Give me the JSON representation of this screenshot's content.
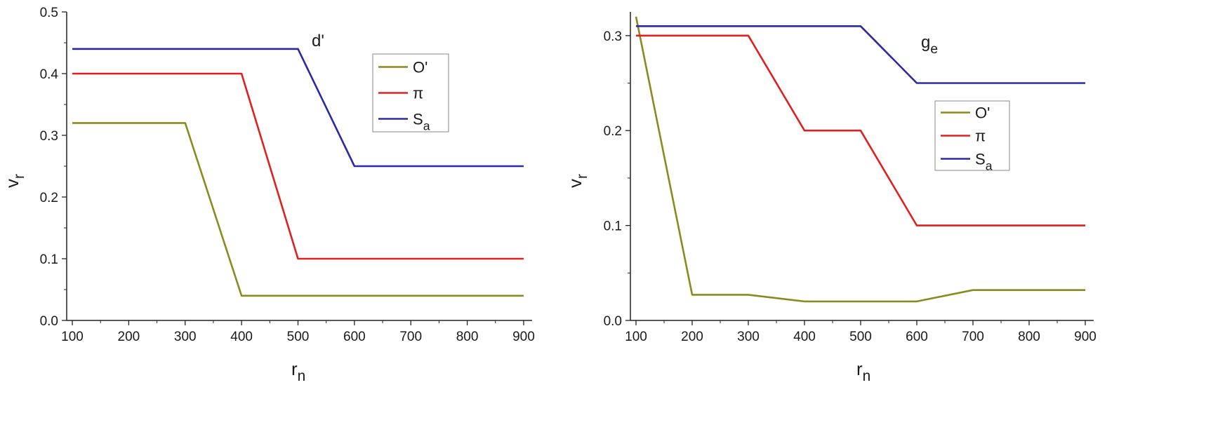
{
  "chart_data": [
    {
      "type": "line",
      "annotation": "d'",
      "xlabel": "r",
      "xlabel_sub": "n",
      "ylabel": "v",
      "ylabel_sub": "r",
      "xlim": [
        90,
        915
      ],
      "ylim": [
        0,
        0.5
      ],
      "xticks": [
        100,
        200,
        300,
        400,
        500,
        600,
        700,
        800,
        900
      ],
      "yticks": [
        0.0,
        0.1,
        0.2,
        0.3,
        0.4,
        0.5
      ],
      "ytick_labels": [
        "0.0",
        "0.1",
        "0.2",
        "0.3",
        "0.4",
        "0.5"
      ],
      "legend_position": "upper-right",
      "series": [
        {
          "name": "O'",
          "name_sub": "",
          "color": "#8a8a1e",
          "x": [
            100,
            300,
            400,
            900
          ],
          "values": [
            0.32,
            0.32,
            0.04,
            0.04
          ]
        },
        {
          "name": "π",
          "name_sub": "",
          "color": "#e02020",
          "x": [
            100,
            400,
            500,
            900
          ],
          "values": [
            0.4,
            0.4,
            0.1,
            0.1
          ]
        },
        {
          "name": "S",
          "name_sub": "a",
          "color": "#2a2aa8",
          "x": [
            100,
            500,
            600,
            900
          ],
          "values": [
            0.44,
            0.44,
            0.25,
            0.25
          ]
        }
      ]
    },
    {
      "type": "line",
      "annotation": "g",
      "annotation_sub": "e",
      "xlabel": "r",
      "xlabel_sub": "n",
      "ylabel": "v",
      "ylabel_sub": "r",
      "xlim": [
        90,
        915
      ],
      "ylim": [
        0,
        0.325
      ],
      "xticks": [
        100,
        200,
        300,
        400,
        500,
        600,
        700,
        800,
        900
      ],
      "yticks": [
        0.0,
        0.1,
        0.2,
        0.3
      ],
      "ytick_labels": [
        "0.0",
        "0.1",
        "0.2",
        "0.3"
      ],
      "legend_position": "right",
      "series": [
        {
          "name": "O'",
          "name_sub": "",
          "color": "#8a8a1e",
          "x": [
            100,
            200,
            300,
            400,
            500,
            600,
            700,
            900
          ],
          "values": [
            0.32,
            0.027,
            0.027,
            0.02,
            0.02,
            0.02,
            0.032,
            0.032
          ]
        },
        {
          "name": "π",
          "name_sub": "",
          "color": "#e02020",
          "x": [
            100,
            300,
            400,
            500,
            600,
            900
          ],
          "values": [
            0.3,
            0.3,
            0.2,
            0.2,
            0.1,
            0.1
          ]
        },
        {
          "name": "S",
          "name_sub": "a",
          "color": "#2a2aa8",
          "x": [
            100,
            500,
            600,
            900
          ],
          "values": [
            0.31,
            0.31,
            0.25,
            0.25
          ]
        }
      ]
    }
  ]
}
